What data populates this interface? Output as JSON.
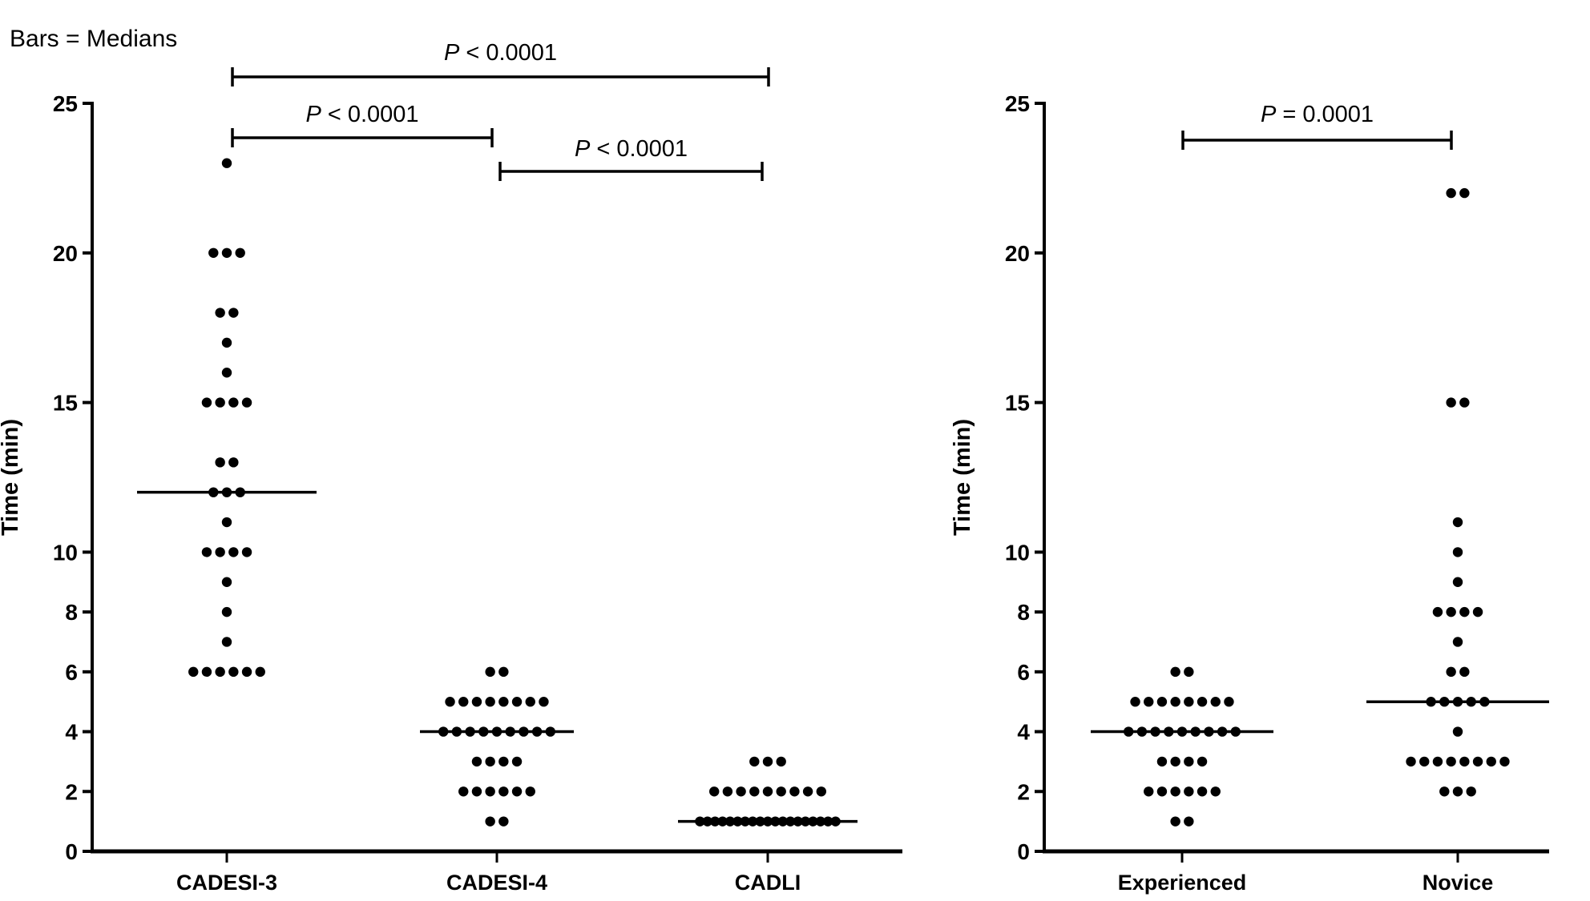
{
  "note": "Bars = Medians",
  "colors": {
    "ink": "#000000",
    "background": "#ffffff"
  },
  "chart_data": [
    {
      "type": "scatter",
      "subtype": "dot-plot with median bars",
      "title": "",
      "xlabel": "",
      "ylabel": "Time (min)",
      "ylim": [
        0,
        25
      ],
      "yticks": [
        0,
        2,
        4,
        6,
        8,
        10,
        15,
        20,
        25
      ],
      "grid": false,
      "legend": "Bars = Medians",
      "categories": [
        "CADESI-3",
        "CADESI-4",
        "CADLI"
      ],
      "series": [
        {
          "name": "CADESI-3",
          "points": [
            {
              "value": 23,
              "count": 1
            },
            {
              "value": 20,
              "count": 3
            },
            {
              "value": 18,
              "count": 2
            },
            {
              "value": 17,
              "count": 1
            },
            {
              "value": 16,
              "count": 1
            },
            {
              "value": 15,
              "count": 4
            },
            {
              "value": 13,
              "count": 2
            },
            {
              "value": 12,
              "count": 3
            },
            {
              "value": 11,
              "count": 1
            },
            {
              "value": 10,
              "count": 4
            },
            {
              "value": 9,
              "count": 1
            },
            {
              "value": 8,
              "count": 1
            },
            {
              "value": 7,
              "count": 1
            },
            {
              "value": 6,
              "count": 6
            }
          ],
          "median": 12
        },
        {
          "name": "CADESI-4",
          "points": [
            {
              "value": 6,
              "count": 2
            },
            {
              "value": 5,
              "count": 8
            },
            {
              "value": 4,
              "count": 9
            },
            {
              "value": 3,
              "count": 4
            },
            {
              "value": 2,
              "count": 6
            },
            {
              "value": 1,
              "count": 2
            }
          ],
          "median": 4
        },
        {
          "name": "CADLI",
          "points": [
            {
              "value": 3,
              "count": 3
            },
            {
              "value": 2,
              "count": 9
            },
            {
              "value": 1,
              "count": 19
            }
          ],
          "median": 1
        }
      ],
      "annotations": [
        {
          "from": "CADESI-3",
          "to": "CADLI",
          "label_p": "P",
          "label_rest": " < 0.0001"
        },
        {
          "from": "CADESI-3",
          "to": "CADESI-4",
          "label_p": "P",
          "label_rest": " < 0.0001"
        },
        {
          "from": "CADESI-4",
          "to": "CADLI",
          "label_p": "P",
          "label_rest": " < 0.0001"
        }
      ]
    },
    {
      "type": "scatter",
      "subtype": "dot-plot with median bars",
      "title": "",
      "xlabel": "",
      "ylabel": "Time (min)",
      "ylim": [
        0,
        25
      ],
      "yticks": [
        0,
        2,
        4,
        6,
        8,
        10,
        15,
        20,
        25
      ],
      "grid": false,
      "categories": [
        "Experienced",
        "Novice"
      ],
      "series": [
        {
          "name": "Experienced",
          "points": [
            {
              "value": 6,
              "count": 2
            },
            {
              "value": 5,
              "count": 8
            },
            {
              "value": 4,
              "count": 9
            },
            {
              "value": 3,
              "count": 4
            },
            {
              "value": 2,
              "count": 6
            },
            {
              "value": 1,
              "count": 2
            }
          ],
          "median": 4
        },
        {
          "name": "Novice",
          "points": [
            {
              "value": 22,
              "count": 2
            },
            {
              "value": 15,
              "count": 2
            },
            {
              "value": 11,
              "count": 1
            },
            {
              "value": 10,
              "count": 1
            },
            {
              "value": 9,
              "count": 1
            },
            {
              "value": 8,
              "count": 4
            },
            {
              "value": 7,
              "count": 1
            },
            {
              "value": 6,
              "count": 2
            },
            {
              "value": 5,
              "count": 5
            },
            {
              "value": 4,
              "count": 1
            },
            {
              "value": 3,
              "count": 8
            },
            {
              "value": 2,
              "count": 3
            }
          ],
          "median": 5
        }
      ],
      "annotations": [
        {
          "from": "Experienced",
          "to": "Novice",
          "label_p": "P",
          "label_rest": " = 0.0001"
        }
      ]
    }
  ]
}
